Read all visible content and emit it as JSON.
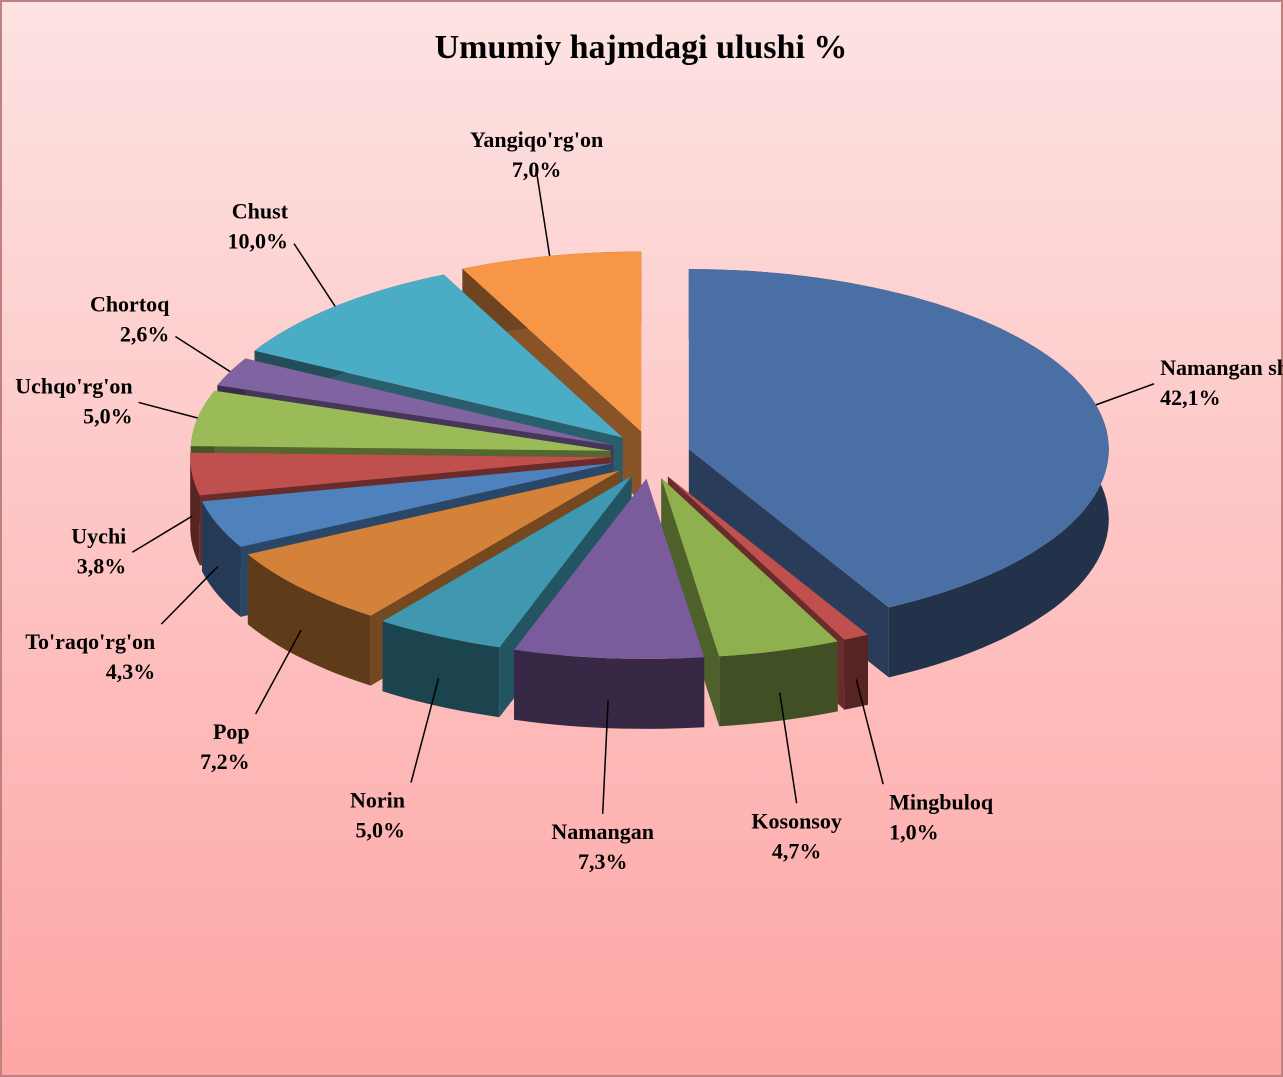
{
  "chart_data": {
    "type": "pie",
    "title": "Umumiy hajmdagi ulushi %",
    "categories": [
      "Namangan sh",
      "Mingbuloq",
      "Kosonsoy",
      "Namangan",
      "Norin",
      "Pop",
      "To'raqo'rg'on",
      "Uychi",
      "Uchqo'rg'on",
      "Chortoq",
      "Chust",
      "Yangiqo'rg'on"
    ],
    "values": [
      42.1,
      1.0,
      4.7,
      7.3,
      5.0,
      7.2,
      4.3,
      3.8,
      5.0,
      2.6,
      10.0,
      7.0
    ],
    "value_labels": [
      "42,1%",
      "1,0%",
      "4,7%",
      "7,3%",
      "5,0%",
      "7,2%",
      "4,3%",
      "3,8%",
      "5,0%",
      "2,6%",
      "10,0%",
      "7,0%"
    ],
    "colors": [
      "#4a6fa5",
      "#c0504d",
      "#8fb04f",
      "#7a5c9c",
      "#3f98b0",
      "#d4823a",
      "#4f81bd",
      "#c0504d",
      "#9bbb59",
      "#8064a2",
      "#4bacc6",
      "#f79646"
    ]
  }
}
